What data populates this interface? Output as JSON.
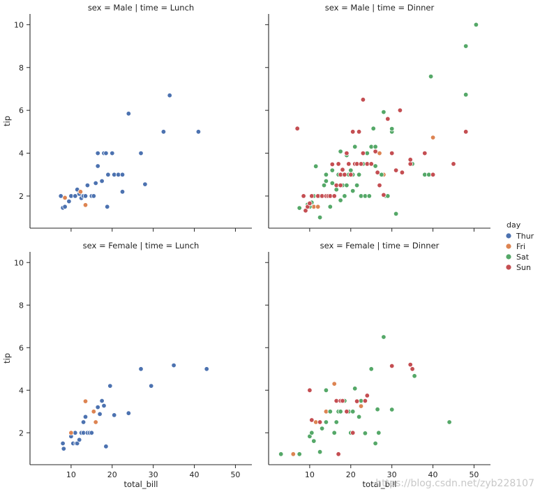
{
  "chart_data": {
    "type": "scatter",
    "x_field": "total_bill",
    "y_field": "tip",
    "hue_field": "day",
    "xlabel": "total_bill",
    "ylabel": "tip",
    "xlim": [
      0,
      54
    ],
    "ylim": [
      0.5,
      10.5
    ],
    "xticks": [
      10,
      20,
      30,
      40,
      50
    ],
    "yticks": [
      2,
      4,
      6,
      8,
      10
    ],
    "legend": {
      "title": "day",
      "placement": "right-center",
      "entries": [
        {
          "label": "Thur",
          "color": "#4c72b0"
        },
        {
          "label": "Fri",
          "color": "#dd8452"
        },
        {
          "label": "Sat",
          "color": "#55a868"
        },
        {
          "label": "Sun",
          "color": "#c44e52"
        }
      ]
    },
    "facets": [
      {
        "title": "sex = Male | time = Lunch",
        "series": [
          {
            "name": "Thur",
            "points": [
              [
                7.5,
                2.0
              ],
              [
                8.0,
                1.45
              ],
              [
                8.5,
                1.5
              ],
              [
                9.5,
                1.75
              ],
              [
                10.0,
                2.0
              ],
              [
                11.0,
                2.0
              ],
              [
                11.5,
                2.3
              ],
              [
                12.0,
                2.1
              ],
              [
                12.5,
                1.9
              ],
              [
                13.0,
                2.0
              ],
              [
                13.5,
                2.0
              ],
              [
                14.0,
                2.5
              ],
              [
                15.0,
                2.0
              ],
              [
                15.5,
                2.0
              ],
              [
                16.0,
                2.6
              ],
              [
                16.5,
                3.4
              ],
              [
                16.5,
                4.0
              ],
              [
                17.5,
                2.7
              ],
              [
                18.0,
                4.0
              ],
              [
                18.5,
                4.0
              ],
              [
                18.8,
                1.5
              ],
              [
                19.0,
                3.0
              ],
              [
                20.0,
                4.0
              ],
              [
                20.5,
                3.0
              ],
              [
                21.5,
                3.0
              ],
              [
                22.5,
                2.2
              ],
              [
                22.5,
                3.0
              ],
              [
                24.0,
                5.85
              ],
              [
                27.0,
                4.0
              ],
              [
                28.0,
                2.55
              ],
              [
                32.5,
                5.0
              ],
              [
                34.0,
                6.7
              ],
              [
                41.0,
                5.0
              ]
            ]
          },
          {
            "name": "Fri",
            "points": [
              [
                8.5,
                1.92
              ],
              [
                12.3,
                2.2
              ],
              [
                13.5,
                1.58
              ]
            ]
          }
        ]
      },
      {
        "title": "sex = Male | time = Dinner",
        "series": [
          {
            "name": "Fri",
            "points": [
              [
                11.0,
                1.5
              ],
              [
                12.0,
                1.5
              ],
              [
                21.0,
                3.5
              ],
              [
                22.5,
                3.5
              ],
              [
                27.0,
                4.0
              ],
              [
                28.0,
                3.0
              ],
              [
                40.0,
                4.73
              ]
            ]
          },
          {
            "name": "Sat",
            "points": [
              [
                7.5,
                1.44
              ],
              [
                9.5,
                1.6
              ],
              [
                10.0,
                1.5
              ],
              [
                10.5,
                1.7
              ],
              [
                11.0,
                2.0
              ],
              [
                11.5,
                3.39
              ],
              [
                12.0,
                2.0
              ],
              [
                12.5,
                1.0
              ],
              [
                12.5,
                2.0
              ],
              [
                13.0,
                2.0
              ],
              [
                13.5,
                2.5
              ],
              [
                14.0,
                2.7
              ],
              [
                14.0,
                3.0
              ],
              [
                14.5,
                2.0
              ],
              [
                15.0,
                1.5
              ],
              [
                15.5,
                2.6
              ],
              [
                15.5,
                3.2
              ],
              [
                16.0,
                2.0
              ],
              [
                16.5,
                2.3
              ],
              [
                17.0,
                3.0
              ],
              [
                17.0,
                3.5
              ],
              [
                17.5,
                1.8
              ],
              [
                17.5,
                4.08
              ],
              [
                18.0,
                2.5
              ],
              [
                18.0,
                3.0
              ],
              [
                18.5,
                2.0
              ],
              [
                19.0,
                2.5
              ],
              [
                19.0,
                3.9
              ],
              [
                19.5,
                3.0
              ],
              [
                20.0,
                3.2
              ],
              [
                20.5,
                2.24
              ],
              [
                20.5,
                3.0
              ],
              [
                21.0,
                4.3
              ],
              [
                21.5,
                2.5
              ],
              [
                22.0,
                3.0
              ],
              [
                22.5,
                2.0
              ],
              [
                23.0,
                3.5
              ],
              [
                23.5,
                2.0
              ],
              [
                24.0,
                4.0
              ],
              [
                24.5,
                2.0
              ],
              [
                25.0,
                4.3
              ],
              [
                25.5,
                5.15
              ],
              [
                26.0,
                3.4
              ],
              [
                26.0,
                4.3
              ],
              [
                27.5,
                3.0
              ],
              [
                28.0,
                5.92
              ],
              [
                28.5,
                2.0
              ],
              [
                29.0,
                2.0
              ],
              [
                30.0,
                5.0
              ],
              [
                30.0,
                5.14
              ],
              [
                31.0,
                1.17
              ],
              [
                35.0,
                3.5
              ],
              [
                38.0,
                3.0
              ],
              [
                39.0,
                3.0
              ],
              [
                39.5,
                7.58
              ],
              [
                48.0,
                6.73
              ],
              [
                48.0,
                9.0
              ],
              [
                50.5,
                10.0
              ]
            ]
          },
          {
            "name": "Sun",
            "points": [
              [
                7.0,
                5.15
              ],
              [
                8.5,
                2.0
              ],
              [
                9.0,
                1.32
              ],
              [
                9.5,
                1.5
              ],
              [
                10.0,
                1.66
              ],
              [
                10.5,
                2.0
              ],
              [
                12.0,
                2.0
              ],
              [
                13.0,
                2.0
              ],
              [
                14.0,
                2.0
              ],
              [
                14.5,
                2.0
              ],
              [
                15.0,
                2.0
              ],
              [
                15.5,
                3.48
              ],
              [
                16.0,
                2.0
              ],
              [
                16.5,
                2.5
              ],
              [
                17.0,
                3.5
              ],
              [
                17.5,
                3.0
              ],
              [
                17.5,
                2.5
              ],
              [
                18.0,
                3.23
              ],
              [
                18.5,
                3.0
              ],
              [
                19.0,
                4.0
              ],
              [
                19.5,
                3.5
              ],
              [
                20.0,
                3.0
              ],
              [
                20.5,
                5.0
              ],
              [
                21.0,
                3.5
              ],
              [
                21.5,
                3.5
              ],
              [
                22.0,
                5.0
              ],
              [
                22.5,
                3.5
              ],
              [
                23.0,
                4.0
              ],
              [
                23.0,
                6.5
              ],
              [
                24.0,
                3.5
              ],
              [
                25.0,
                3.5
              ],
              [
                26.0,
                4.08
              ],
              [
                26.5,
                3.1
              ],
              [
                27.0,
                2.5
              ],
              [
                28.0,
                2.05
              ],
              [
                29.0,
                5.6
              ],
              [
                30.0,
                4.0
              ],
              [
                31.0,
                3.2
              ],
              [
                32.0,
                6.0
              ],
              [
                32.5,
                3.1
              ],
              [
                34.5,
                3.5
              ],
              [
                34.5,
                3.7
              ],
              [
                38.0,
                4.0
              ],
              [
                40.0,
                3.0
              ],
              [
                45.0,
                3.5
              ],
              [
                48.0,
                5.0
              ]
            ]
          }
        ]
      },
      {
        "title": "sex = Female | time = Lunch",
        "series": [
          {
            "name": "Thur",
            "points": [
              [
                8.0,
                1.5
              ],
              [
                8.2,
                1.25
              ],
              [
                10.0,
                1.83
              ],
              [
                10.5,
                1.5
              ],
              [
                11.0,
                2.0
              ],
              [
                11.2,
                1.5
              ],
              [
                11.5,
                1.5
              ],
              [
                12.0,
                1.67
              ],
              [
                12.5,
                2.0
              ],
              [
                13.0,
                2.0
              ],
              [
                13.0,
                2.5
              ],
              [
                13.5,
                2.75
              ],
              [
                14.0,
                2.0
              ],
              [
                14.5,
                2.0
              ],
              [
                15.0,
                2.0
              ],
              [
                16.5,
                3.2
              ],
              [
                17.0,
                2.88
              ],
              [
                17.5,
                3.5
              ],
              [
                18.0,
                3.27
              ],
              [
                18.5,
                1.36
              ],
              [
                19.5,
                4.2
              ],
              [
                20.5,
                2.83
              ],
              [
                24.0,
                2.92
              ],
              [
                27.0,
                5.0
              ],
              [
                29.5,
                4.2
              ],
              [
                35.0,
                5.17
              ],
              [
                43.0,
                5.0
              ]
            ]
          },
          {
            "name": "Fri",
            "points": [
              [
                10.0,
                2.0
              ],
              [
                13.5,
                3.48
              ],
              [
                15.5,
                3.0
              ],
              [
                16.0,
                2.5
              ]
            ]
          }
        ]
      },
      {
        "title": "sex = Female | time = Dinner",
        "series": [
          {
            "name": "Fri",
            "points": [
              [
                6.0,
                1.0
              ],
              [
                11.5,
                2.5
              ],
              [
                14.0,
                3.0
              ],
              [
                15.0,
                3.0
              ],
              [
                16.0,
                4.3
              ],
              [
                16.5,
                3.5
              ],
              [
                22.5,
                3.25
              ]
            ]
          },
          {
            "name": "Sat",
            "points": [
              [
                3.0,
                1.0
              ],
              [
                7.5,
                1.0
              ],
              [
                10.0,
                1.83
              ],
              [
                10.5,
                2.0
              ],
              [
                11.0,
                1.61
              ],
              [
                12.5,
                1.1
              ],
              [
                13.0,
                2.2
              ],
              [
                14.0,
                2.5
              ],
              [
                14.0,
                4.0
              ],
              [
                15.0,
                3.0
              ],
              [
                16.0,
                2.0
              ],
              [
                16.5,
                2.5
              ],
              [
                17.0,
                3.0
              ],
              [
                17.5,
                3.0
              ],
              [
                18.5,
                3.5
              ],
              [
                19.5,
                3.0
              ],
              [
                20.0,
                2.0
              ],
              [
                20.5,
                3.0
              ],
              [
                21.0,
                4.08
              ],
              [
                22.0,
                2.75
              ],
              [
                22.5,
                3.5
              ],
              [
                23.5,
                1.98
              ],
              [
                25.0,
                5.0
              ],
              [
                26.0,
                1.5
              ],
              [
                26.5,
                3.1
              ],
              [
                26.8,
                2.0
              ],
              [
                28.0,
                6.5
              ],
              [
                30.0,
                3.09
              ],
              [
                35.5,
                4.67
              ],
              [
                44.0,
                2.5
              ]
            ]
          },
          {
            "name": "Sun",
            "points": [
              [
                10.0,
                4.0
              ],
              [
                10.5,
                2.6
              ],
              [
                12.5,
                2.5
              ],
              [
                16.5,
                3.5
              ],
              [
                17.0,
                1.0
              ],
              [
                17.5,
                3.5
              ],
              [
                18.0,
                3.5
              ],
              [
                19.0,
                3.0
              ],
              [
                20.5,
                2.0
              ],
              [
                21.5,
                3.48
              ],
              [
                23.5,
                3.5
              ],
              [
                24.0,
                3.75
              ],
              [
                30.0,
                5.14
              ],
              [
                34.5,
                5.2
              ],
              [
                35.0,
                5.0
              ]
            ]
          }
        ]
      }
    ]
  },
  "watermark": "https://blog.csdn.net/zyb228107"
}
